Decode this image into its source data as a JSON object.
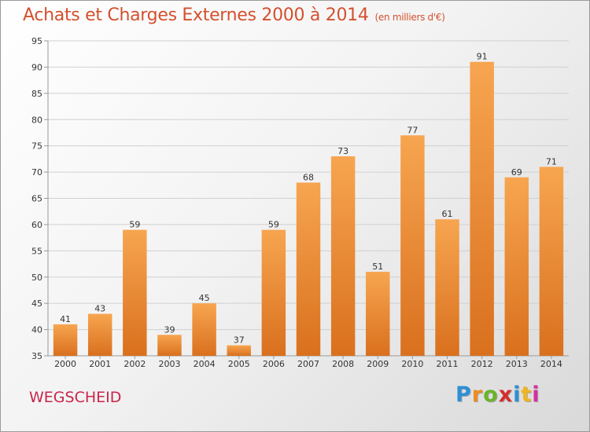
{
  "header": {
    "title": "Achats et Charges Externes 2000 à 2014",
    "subtitle": "(en milliers d'€)"
  },
  "footer": {
    "place": "WEGSCHEID",
    "logo_letters": [
      "P",
      "r",
      "o",
      "x",
      "i",
      "t",
      "i"
    ],
    "logo_colors": [
      "#2e8fd6",
      "#f08a1c",
      "#6ab42c",
      "#d62e2e",
      "#2e8fd6",
      "#f0b41c",
      "#d62ea0"
    ]
  },
  "chart_data": {
    "type": "bar",
    "categories": [
      "2000",
      "2001",
      "2002",
      "2003",
      "2004",
      "2005",
      "2006",
      "2007",
      "2008",
      "2009",
      "2010",
      "2011",
      "2012",
      "2013",
      "2014"
    ],
    "values": [
      41,
      43,
      59,
      39,
      45,
      37,
      59,
      68,
      73,
      51,
      77,
      61,
      91,
      69,
      71
    ],
    "ylim": [
      35,
      95
    ],
    "yticks": [
      35,
      40,
      45,
      50,
      55,
      60,
      65,
      70,
      75,
      80,
      85,
      90,
      95
    ],
    "grid": true,
    "bar_color_top": "#f7a550",
    "bar_color_bottom": "#d9701e",
    "xlabel": "",
    "ylabel": ""
  }
}
